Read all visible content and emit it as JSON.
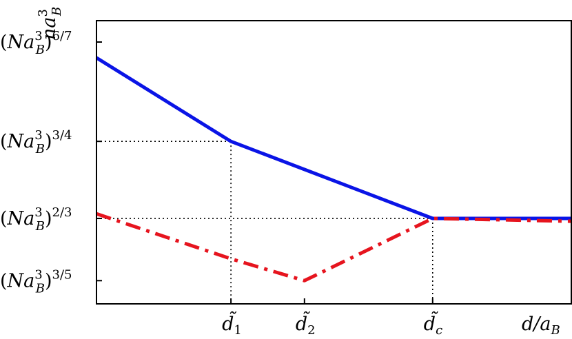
{
  "chart_data": {
    "type": "line",
    "title": "",
    "xlabel": "d/a_B",
    "ylabel": "na_B^3",
    "xlim": [
      0,
      1.13
    ],
    "ylim": [
      0.575,
      0.88
    ],
    "grid": false,
    "legend": "none",
    "x_ticks": [
      {
        "name": "d1",
        "value": 0.32,
        "label": "d̃1"
      },
      {
        "name": "d2",
        "value": 0.495,
        "label": "d̃2"
      },
      {
        "name": "dc",
        "value": 0.8,
        "label": "d̃c"
      }
    ],
    "y_ticks": [
      {
        "name": "six-sevenths",
        "value": 0.857,
        "label": "(Na_B^3)^6/7",
        "exponent": "6/7"
      },
      {
        "name": "three-fourths",
        "value": 0.75,
        "label": "(Na_B^3)^3/4",
        "exponent": "3/4"
      },
      {
        "name": "two-thirds",
        "value": 0.667,
        "label": "(Na_B^3)^2/3",
        "exponent": "2/3"
      },
      {
        "name": "three-fifths",
        "value": 0.6,
        "label": "(Na_B^3)^3/5",
        "exponent": "3/5"
      }
    ],
    "series": [
      {
        "style": "solid",
        "color": "#0a14e6",
        "points": [
          [
            0,
            0.84
          ],
          [
            0.32,
            0.75
          ],
          [
            0.8,
            0.667
          ],
          [
            1.13,
            0.667
          ]
        ]
      },
      {
        "style": "dash-dot",
        "color": "#e6141e",
        "points": [
          [
            0,
            0.672
          ],
          [
            0.32,
            0.6235
          ],
          [
            0.495,
            0.6
          ],
          [
            0.8,
            0.667
          ],
          [
            1.13,
            0.664
          ]
        ]
      }
    ],
    "guides": [
      {
        "from": [
          0,
          0.75
        ],
        "to": [
          0.32,
          0.75
        ]
      },
      {
        "from": [
          0.32,
          0.75
        ],
        "to": [
          0.32,
          0.575
        ]
      },
      {
        "from": [
          0,
          0.667
        ],
        "to": [
          0.8,
          0.667
        ]
      },
      {
        "from": [
          0.8,
          0.667
        ],
        "to": [
          0.8,
          0.575
        ]
      }
    ]
  }
}
